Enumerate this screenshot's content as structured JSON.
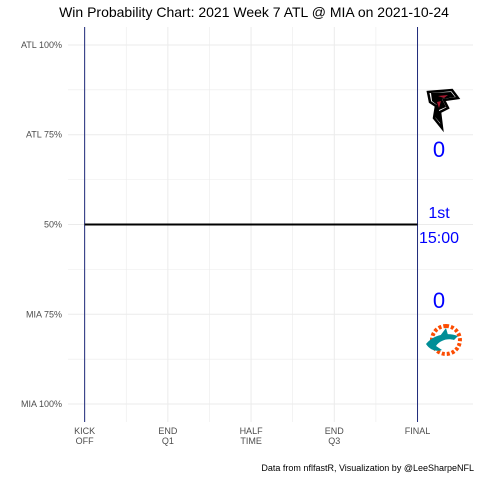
{
  "chart_data": {
    "type": "line",
    "title": "Win Probability Chart: 2021 Week 7 ATL @ MIA on 2021-10-24",
    "caption": "Data from nflfastR, Visualization by @LeeSharpeNFL",
    "xlabel": "",
    "ylabel": "",
    "x_ticks": [
      {
        "value": 0,
        "label": [
          "KICK",
          "OFF"
        ]
      },
      {
        "value": 15,
        "label": [
          "END",
          "Q1"
        ]
      },
      {
        "value": 30,
        "label": [
          "HALF",
          "TIME"
        ]
      },
      {
        "value": 45,
        "label": [
          "END",
          "Q3"
        ]
      },
      {
        "value": 60,
        "label": [
          "FINAL"
        ]
      }
    ],
    "xlim": [
      -3,
      70
    ],
    "y_ticks": [
      {
        "value": 1.0,
        "label": "ATL 100%"
      },
      {
        "value": 0.75,
        "label": "ATL 75%"
      },
      {
        "value": 0.5,
        "label": "50%"
      },
      {
        "value": 0.25,
        "label": "MIA 75%"
      },
      {
        "value": 0.0,
        "label": "MIA 100%"
      }
    ],
    "ylim": [
      -0.05,
      1.05
    ],
    "grid": true,
    "vlines": [
      0,
      60
    ],
    "series": [
      {
        "x": [
          0,
          60
        ],
        "y": [
          0.5,
          0.5
        ],
        "color": "#000000"
      }
    ],
    "scores": {
      "away": "0",
      "home": "0"
    },
    "quarter": "1st",
    "clock": "15:00",
    "colors": {
      "annotation": "#0000ff",
      "vline": "#1f2a7a",
      "atl_red": "#a71930",
      "mia_aqua": "#008e97",
      "mia_orange": "#fc4c02"
    },
    "logos": {
      "away": "falcons-logo",
      "home": "dolphins-logo"
    }
  }
}
